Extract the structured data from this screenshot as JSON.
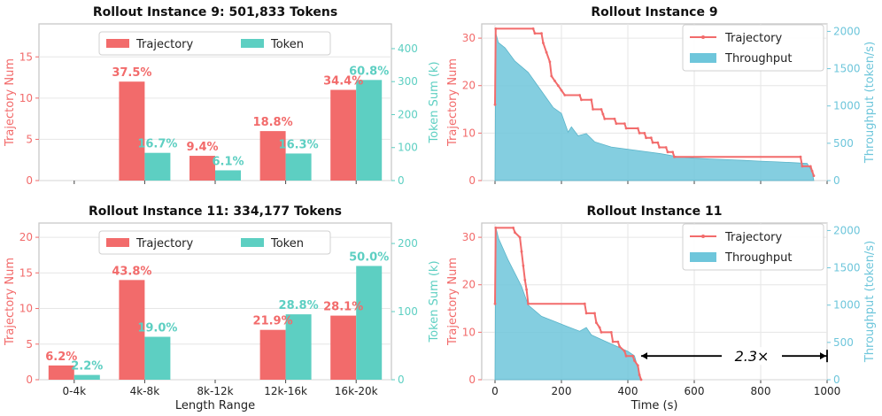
{
  "colors": {
    "trajectory": "#f26b6b",
    "token": "#5dcfc2",
    "throughput": "#6ec6db",
    "grid": "#e6e6e6",
    "frame": "#c8c8c8"
  },
  "chart_data": [
    {
      "type": "bar",
      "title": "Rollout Instance 9: 501,833 Tokens",
      "categories": [
        "0-4k",
        "4k-8k",
        "8k-12k",
        "12k-16k",
        "16k-20k"
      ],
      "show_tick_labels": false,
      "xlabel": "",
      "ylabel": "Trajectory Num",
      "y2label": "Token Sum (k)",
      "ylim": [
        0,
        19
      ],
      "yticks": [
        0,
        5,
        10,
        15
      ],
      "y2lim": [
        0,
        475
      ],
      "y2ticks": [
        0,
        100,
        200,
        300,
        400
      ],
      "legend": [
        "Trajectory",
        "Token"
      ],
      "series": [
        {
          "name": "Trajectory",
          "values": [
            0,
            12,
            3,
            6,
            11
          ],
          "labels": [
            "",
            "37.5%",
            "9.4%",
            "18.8%",
            "34.4%"
          ]
        },
        {
          "name": "Token",
          "values": [
            0,
            84,
            31,
            82,
            305
          ],
          "labels": [
            "",
            "16.7%",
            "6.1%",
            "16.3%",
            "60.8%"
          ]
        }
      ]
    },
    {
      "type": "bar",
      "title": "Rollout Instance 11: 334,177 Tokens",
      "categories": [
        "0-4k",
        "4k-8k",
        "8k-12k",
        "12k-16k",
        "16k-20k"
      ],
      "show_tick_labels": true,
      "xlabel": "Length Range",
      "ylabel": "Trajectory Num",
      "y2label": "Token Sum (k)",
      "ylim": [
        0,
        22
      ],
      "yticks": [
        0,
        5,
        10,
        15,
        20
      ],
      "y2lim": [
        0,
        230
      ],
      "y2ticks": [
        0,
        100,
        200
      ],
      "legend": [
        "Trajectory",
        "Token"
      ],
      "series": [
        {
          "name": "Trajectory",
          "values": [
            2,
            14,
            0,
            7,
            9
          ],
          "labels": [
            "6.2%",
            "43.8%",
            "",
            "21.9%",
            "28.1%"
          ]
        },
        {
          "name": "Token",
          "values": [
            7,
            63,
            0,
            96,
            167
          ],
          "labels": [
            "2.2%",
            "19.0%",
            "",
            "28.8%",
            "50.0%"
          ]
        }
      ]
    },
    {
      "type": "line",
      "title": "Rollout Instance 9",
      "show_tick_labels": false,
      "xlabel": "",
      "ylabel": "Trajectory Num",
      "y2label": "Throughput (token/s)",
      "xlim": [
        -40,
        1000
      ],
      "xticks": [
        0,
        200,
        400,
        600,
        800,
        1000
      ],
      "ylim": [
        0,
        33
      ],
      "yticks": [
        0,
        10,
        20,
        30
      ],
      "y2lim": [
        0,
        2100
      ],
      "y2ticks": [
        0,
        500,
        1000,
        1500,
        2000
      ],
      "legend": [
        "Trajectory",
        "Throughput"
      ],
      "series": [
        {
          "name": "Trajectory",
          "points": [
            [
              0,
              16
            ],
            [
              2,
              32
            ],
            [
              115,
              32
            ],
            [
              120,
              31
            ],
            [
              140,
              31
            ],
            [
              145,
              29
            ],
            [
              155,
              27
            ],
            [
              165,
              25
            ],
            [
              170,
              22
            ],
            [
              180,
              21
            ],
            [
              190,
              20
            ],
            [
              200,
              19
            ],
            [
              210,
              18
            ],
            [
              255,
              18
            ],
            [
              260,
              17
            ],
            [
              290,
              17
            ],
            [
              295,
              15
            ],
            [
              320,
              15
            ],
            [
              325,
              14
            ],
            [
              330,
              13
            ],
            [
              360,
              13
            ],
            [
              365,
              12
            ],
            [
              390,
              12
            ],
            [
              395,
              11
            ],
            [
              430,
              11
            ],
            [
              435,
              10
            ],
            [
              450,
              10
            ],
            [
              455,
              9
            ],
            [
              470,
              9
            ],
            [
              475,
              8
            ],
            [
              490,
              8
            ],
            [
              495,
              7
            ],
            [
              515,
              7
            ],
            [
              520,
              6
            ],
            [
              535,
              6
            ],
            [
              540,
              5
            ],
            [
              920,
              5
            ],
            [
              925,
              3
            ],
            [
              950,
              3
            ],
            [
              955,
              2
            ],
            [
              960,
              1
            ]
          ]
        },
        {
          "name": "Throughput",
          "points": [
            [
              0,
              0
            ],
            [
              2,
              1980
            ],
            [
              10,
              1850
            ],
            [
              30,
              1780
            ],
            [
              60,
              1600
            ],
            [
              100,
              1450
            ],
            [
              140,
              1200
            ],
            [
              175,
              980
            ],
            [
              200,
              900
            ],
            [
              220,
              650
            ],
            [
              230,
              720
            ],
            [
              250,
              600
            ],
            [
              275,
              630
            ],
            [
              300,
              520
            ],
            [
              350,
              450
            ],
            [
              400,
              420
            ],
            [
              450,
              390
            ],
            [
              500,
              360
            ],
            [
              550,
              320
            ],
            [
              600,
              300
            ],
            [
              650,
              290
            ],
            [
              700,
              280
            ],
            [
              750,
              270
            ],
            [
              800,
              260
            ],
            [
              850,
              250
            ],
            [
              900,
              240
            ],
            [
              940,
              230
            ],
            [
              955,
              120
            ],
            [
              960,
              0
            ]
          ]
        }
      ]
    },
    {
      "type": "line",
      "title": "Rollout Instance 11",
      "show_tick_labels": true,
      "xlabel": "Time (s)",
      "ylabel": "Trajectory Num",
      "y2label": "Throughput (token/s)",
      "xlim": [
        -40,
        1000
      ],
      "xticks": [
        0,
        200,
        400,
        600,
        800,
        1000
      ],
      "ylim": [
        0,
        33
      ],
      "yticks": [
        0,
        10,
        20,
        30
      ],
      "y2lim": [
        0,
        2100
      ],
      "y2ticks": [
        0,
        500,
        1000,
        1500,
        2000
      ],
      "legend": [
        "Trajectory",
        "Throughput"
      ],
      "annotation": {
        "text": "2.3×",
        "x_from": 440,
        "x_to": 1000,
        "y": 5
      },
      "series": [
        {
          "name": "Trajectory",
          "points": [
            [
              0,
              16
            ],
            [
              2,
              32
            ],
            [
              55,
              32
            ],
            [
              60,
              31
            ],
            [
              75,
              30
            ],
            [
              80,
              27
            ],
            [
              85,
              24
            ],
            [
              90,
              21
            ],
            [
              95,
              19
            ],
            [
              100,
              16
            ],
            [
              270,
              16
            ],
            [
              275,
              14
            ],
            [
              300,
              14
            ],
            [
              305,
              12
            ],
            [
              315,
              11
            ],
            [
              320,
              10
            ],
            [
              350,
              10
            ],
            [
              355,
              8
            ],
            [
              370,
              8
            ],
            [
              375,
              7
            ],
            [
              390,
              6
            ],
            [
              395,
              5
            ],
            [
              415,
              5
            ],
            [
              420,
              4
            ],
            [
              430,
              3
            ],
            [
              435,
              1
            ],
            [
              440,
              0
            ]
          ]
        },
        {
          "name": "Throughput",
          "points": [
            [
              0,
              0
            ],
            [
              2,
              2050
            ],
            [
              10,
              1900
            ],
            [
              40,
              1600
            ],
            [
              80,
              1250
            ],
            [
              100,
              1000
            ],
            [
              140,
              850
            ],
            [
              180,
              780
            ],
            [
              220,
              710
            ],
            [
              255,
              650
            ],
            [
              275,
              700
            ],
            [
              290,
              600
            ],
            [
              330,
              520
            ],
            [
              370,
              440
            ],
            [
              400,
              380
            ],
            [
              420,
              320
            ],
            [
              430,
              160
            ],
            [
              440,
              0
            ]
          ]
        }
      ]
    }
  ]
}
